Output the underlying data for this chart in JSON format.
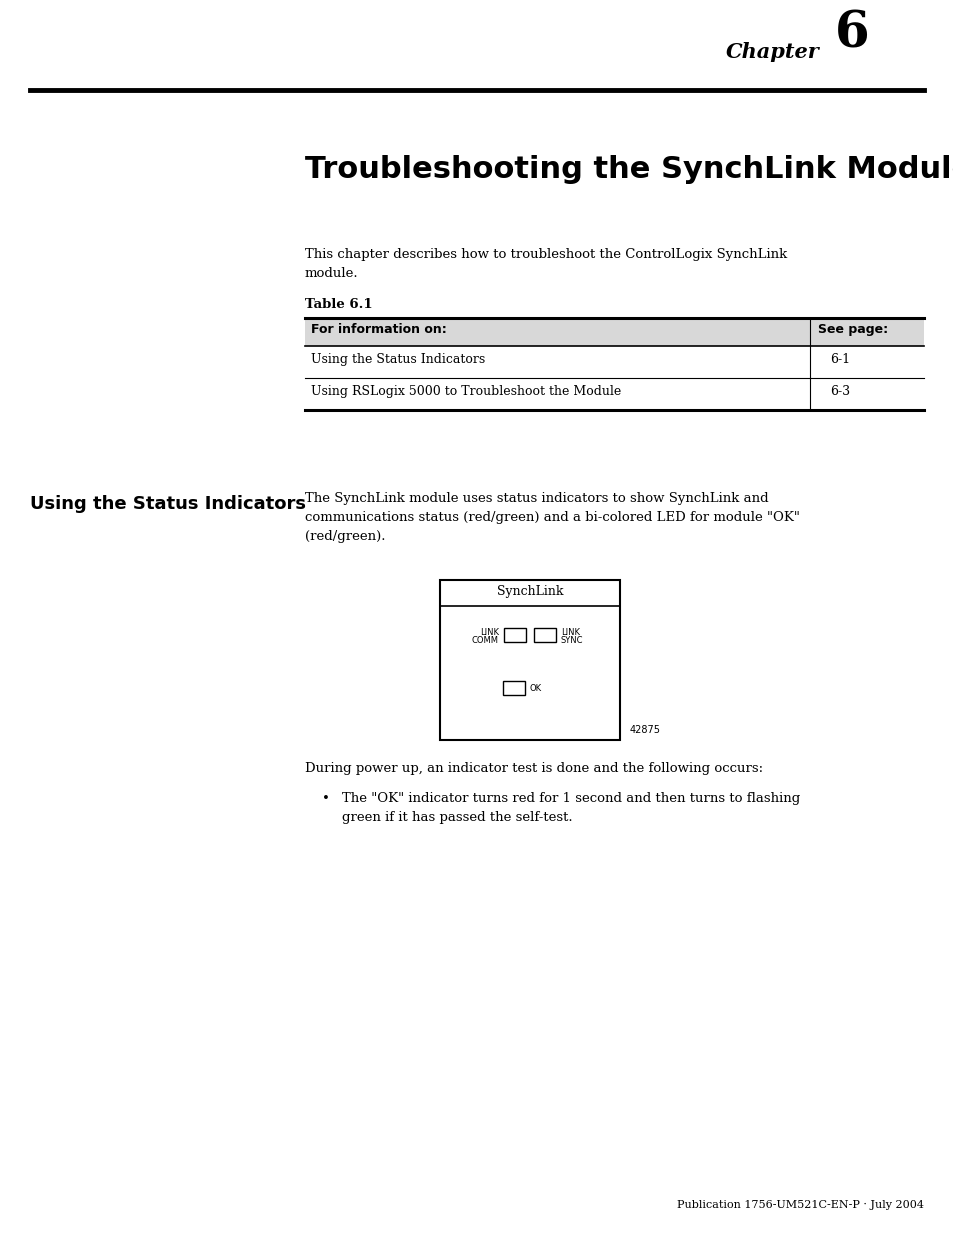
{
  "bg_color": "#ffffff",
  "chapter_text": "Chapter",
  "chapter_num": "6",
  "title": "Troubleshooting the SynchLink Module",
  "intro_text": "This chapter describes how to troubleshoot the ControlLogix SynchLink\nmodule.",
  "table_label": "Table 6.1",
  "table_header_col1": "For information on:",
  "table_header_col2": "See page:",
  "table_rows": [
    [
      "Using the Status Indicators",
      "6-1"
    ],
    [
      "Using RSLogix 5000 to Troubleshoot the Module",
      "6-3"
    ]
  ],
  "section_heading": "Using the Status Indicators",
  "section_text": "The SynchLink module uses status indicators to show SynchLink and\ncommunications status (red/green) and a bi-colored LED for module \"OK\"\n(red/green).",
  "diagram_title": "SynchLink",
  "diagram_label_left_top": "LINK",
  "diagram_label_left_bot": "COMM",
  "diagram_label_right_top": "LINK",
  "diagram_label_right_bot": "SYNC",
  "diagram_ok_label": "OK",
  "diagram_ref": "42875",
  "power_up_text": "During power up, an indicator test is done and the following occurs:",
  "bullet_text": "The \"OK\" indicator turns red for 1 second and then turns to flashing\ngreen if it has passed the self-test.",
  "footer_text": "Publication 1756-UM521C-EN-P · July 2004"
}
